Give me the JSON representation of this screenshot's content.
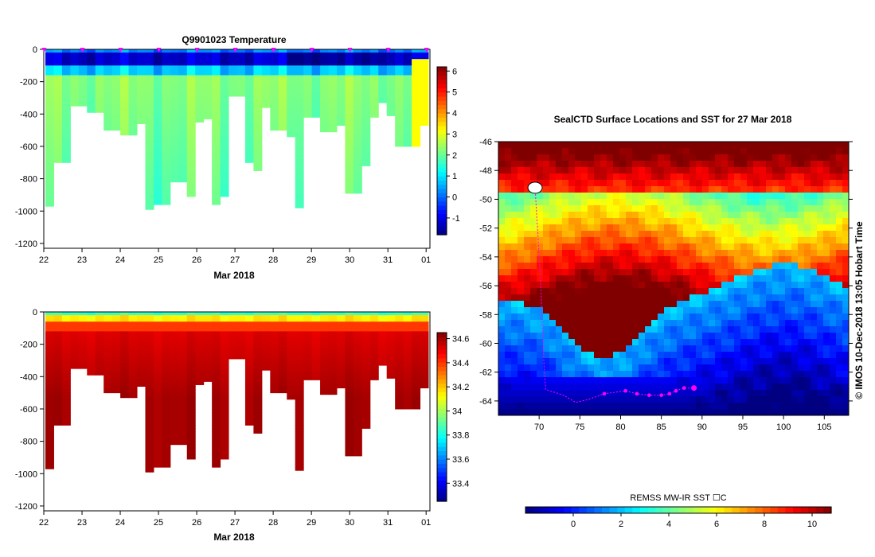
{
  "chart_data": [
    {
      "type": "heatmap",
      "title": "Q9901023  Temperature",
      "xlabel": "Mar 2018",
      "ylabel": "",
      "x_ticks": [
        "22",
        "23",
        "24",
        "25",
        "26",
        "27",
        "28",
        "29",
        "30",
        "31",
        "01"
      ],
      "y_ticks": [
        "0",
        "-200",
        "-400",
        "-600",
        "-800",
        "-1000",
        "-1200"
      ],
      "ylim": [
        -1230,
        0
      ],
      "xlim": [
        22,
        32.1
      ],
      "colorbar": {
        "ticks": [
          "6",
          "5",
          "4",
          "3",
          "2",
          "1",
          "0",
          "-1"
        ],
        "range": [
          -1.8,
          6.2
        ]
      },
      "profile_depths": [
        -970,
        -700,
        -700,
        -350,
        -350,
        -390,
        -390,
        -500,
        -500,
        -530,
        -530,
        -460,
        -990,
        -960,
        -960,
        -820,
        -820,
        -910,
        -450,
        -430,
        -960,
        -910,
        -290,
        -290,
        -700,
        -750,
        -360,
        -500,
        -500,
        -540,
        -980,
        -420,
        -420,
        -510,
        -510,
        -470,
        -890,
        -890,
        -720,
        -420,
        -330,
        -410,
        -600,
        -600,
        -600,
        -470
      ]
    },
    {
      "type": "heatmap",
      "title": "",
      "xlabel": "Mar 2018",
      "ylabel": "",
      "x_ticks": [
        "22",
        "23",
        "24",
        "25",
        "26",
        "27",
        "28",
        "29",
        "30",
        "31",
        "01"
      ],
      "y_ticks": [
        "0",
        "-200",
        "-400",
        "-600",
        "-800",
        "-1000",
        "-1200"
      ],
      "ylim": [
        -1230,
        0
      ],
      "xlim": [
        22,
        32.1
      ],
      "colorbar": {
        "ticks": [
          "34.6",
          "34.4",
          "34.2",
          "34",
          "33.8",
          "33.6",
          "33.4"
        ],
        "range": [
          33.25,
          34.65
        ]
      }
    },
    {
      "type": "heatmap",
      "title": "SealCTD Surface Locations and SST for 27 Mar 2018",
      "xlabel": "",
      "ylabel": "",
      "x_ticks": [
        "70",
        "75",
        "80",
        "85",
        "90",
        "95",
        "100",
        "105"
      ],
      "y_ticks": [
        "-46",
        "-48",
        "-50",
        "-52",
        "-54",
        "-56",
        "-58",
        "-60",
        "-62",
        "-64"
      ],
      "xlim": [
        65,
        108
      ],
      "ylim": [
        -65,
        -46
      ],
      "colorbar": {
        "label": "REMSS MW-IR SST ☐C",
        "ticks": [
          "0",
          "2",
          "4",
          "6",
          "8",
          "10"
        ],
        "range": [
          -2,
          10.8
        ]
      },
      "track": [
        [
          69.5,
          -49.2
        ],
        [
          69.8,
          -52
        ],
        [
          70.2,
          -56
        ],
        [
          70.4,
          -59
        ],
        [
          70.6,
          -61.5
        ],
        [
          70.8,
          -63.2
        ],
        [
          73,
          -63.6
        ],
        [
          74.5,
          -64.1
        ],
        [
          76,
          -63.9
        ],
        [
          78,
          -63.5
        ],
        [
          80.6,
          -63.3
        ],
        [
          82,
          -63.5
        ],
        [
          83.5,
          -63.6
        ],
        [
          85,
          -63.6
        ],
        [
          86,
          -63.5
        ],
        [
          86.8,
          -63.3
        ],
        [
          87.8,
          -63.1
        ],
        [
          89,
          -63.1
        ]
      ]
    }
  ],
  "copyright": "©  IMOS 10-Dec-2018 13:05 Hobart Time",
  "colors": {
    "track": "#ff00ff",
    "colormap": "jet"
  }
}
